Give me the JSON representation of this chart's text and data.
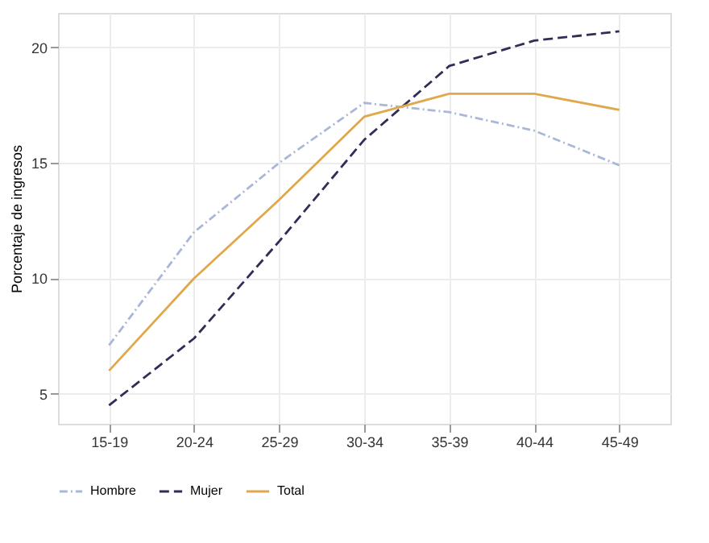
{
  "chart_data": {
    "type": "line",
    "ylabel": "Porcentaje de ingresos",
    "categories": [
      "15-19",
      "20-24",
      "25-29",
      "30-34",
      "35-39",
      "40-44",
      "45-49"
    ],
    "series": [
      {
        "name": "Hombre",
        "color": "#aab8d8",
        "line_style": "dotted",
        "values": [
          7.1,
          12.0,
          15.0,
          17.6,
          17.2,
          16.4,
          14.9
        ]
      },
      {
        "name": "Mujer",
        "color": "#2e2e58",
        "line_style": "dashed",
        "values": [
          4.5,
          7.4,
          11.6,
          16.0,
          19.2,
          20.3,
          20.7
        ]
      },
      {
        "name": "Total",
        "color": "#e0a84a",
        "line_style": "solid",
        "values": [
          6.0,
          10.0,
          13.4,
          17.0,
          18.0,
          18.0,
          17.3
        ]
      }
    ],
    "ylim": [
      3.7,
      21.5
    ],
    "yticks": [
      5,
      10,
      15,
      20
    ],
    "grid": true,
    "legend": "bottom"
  }
}
